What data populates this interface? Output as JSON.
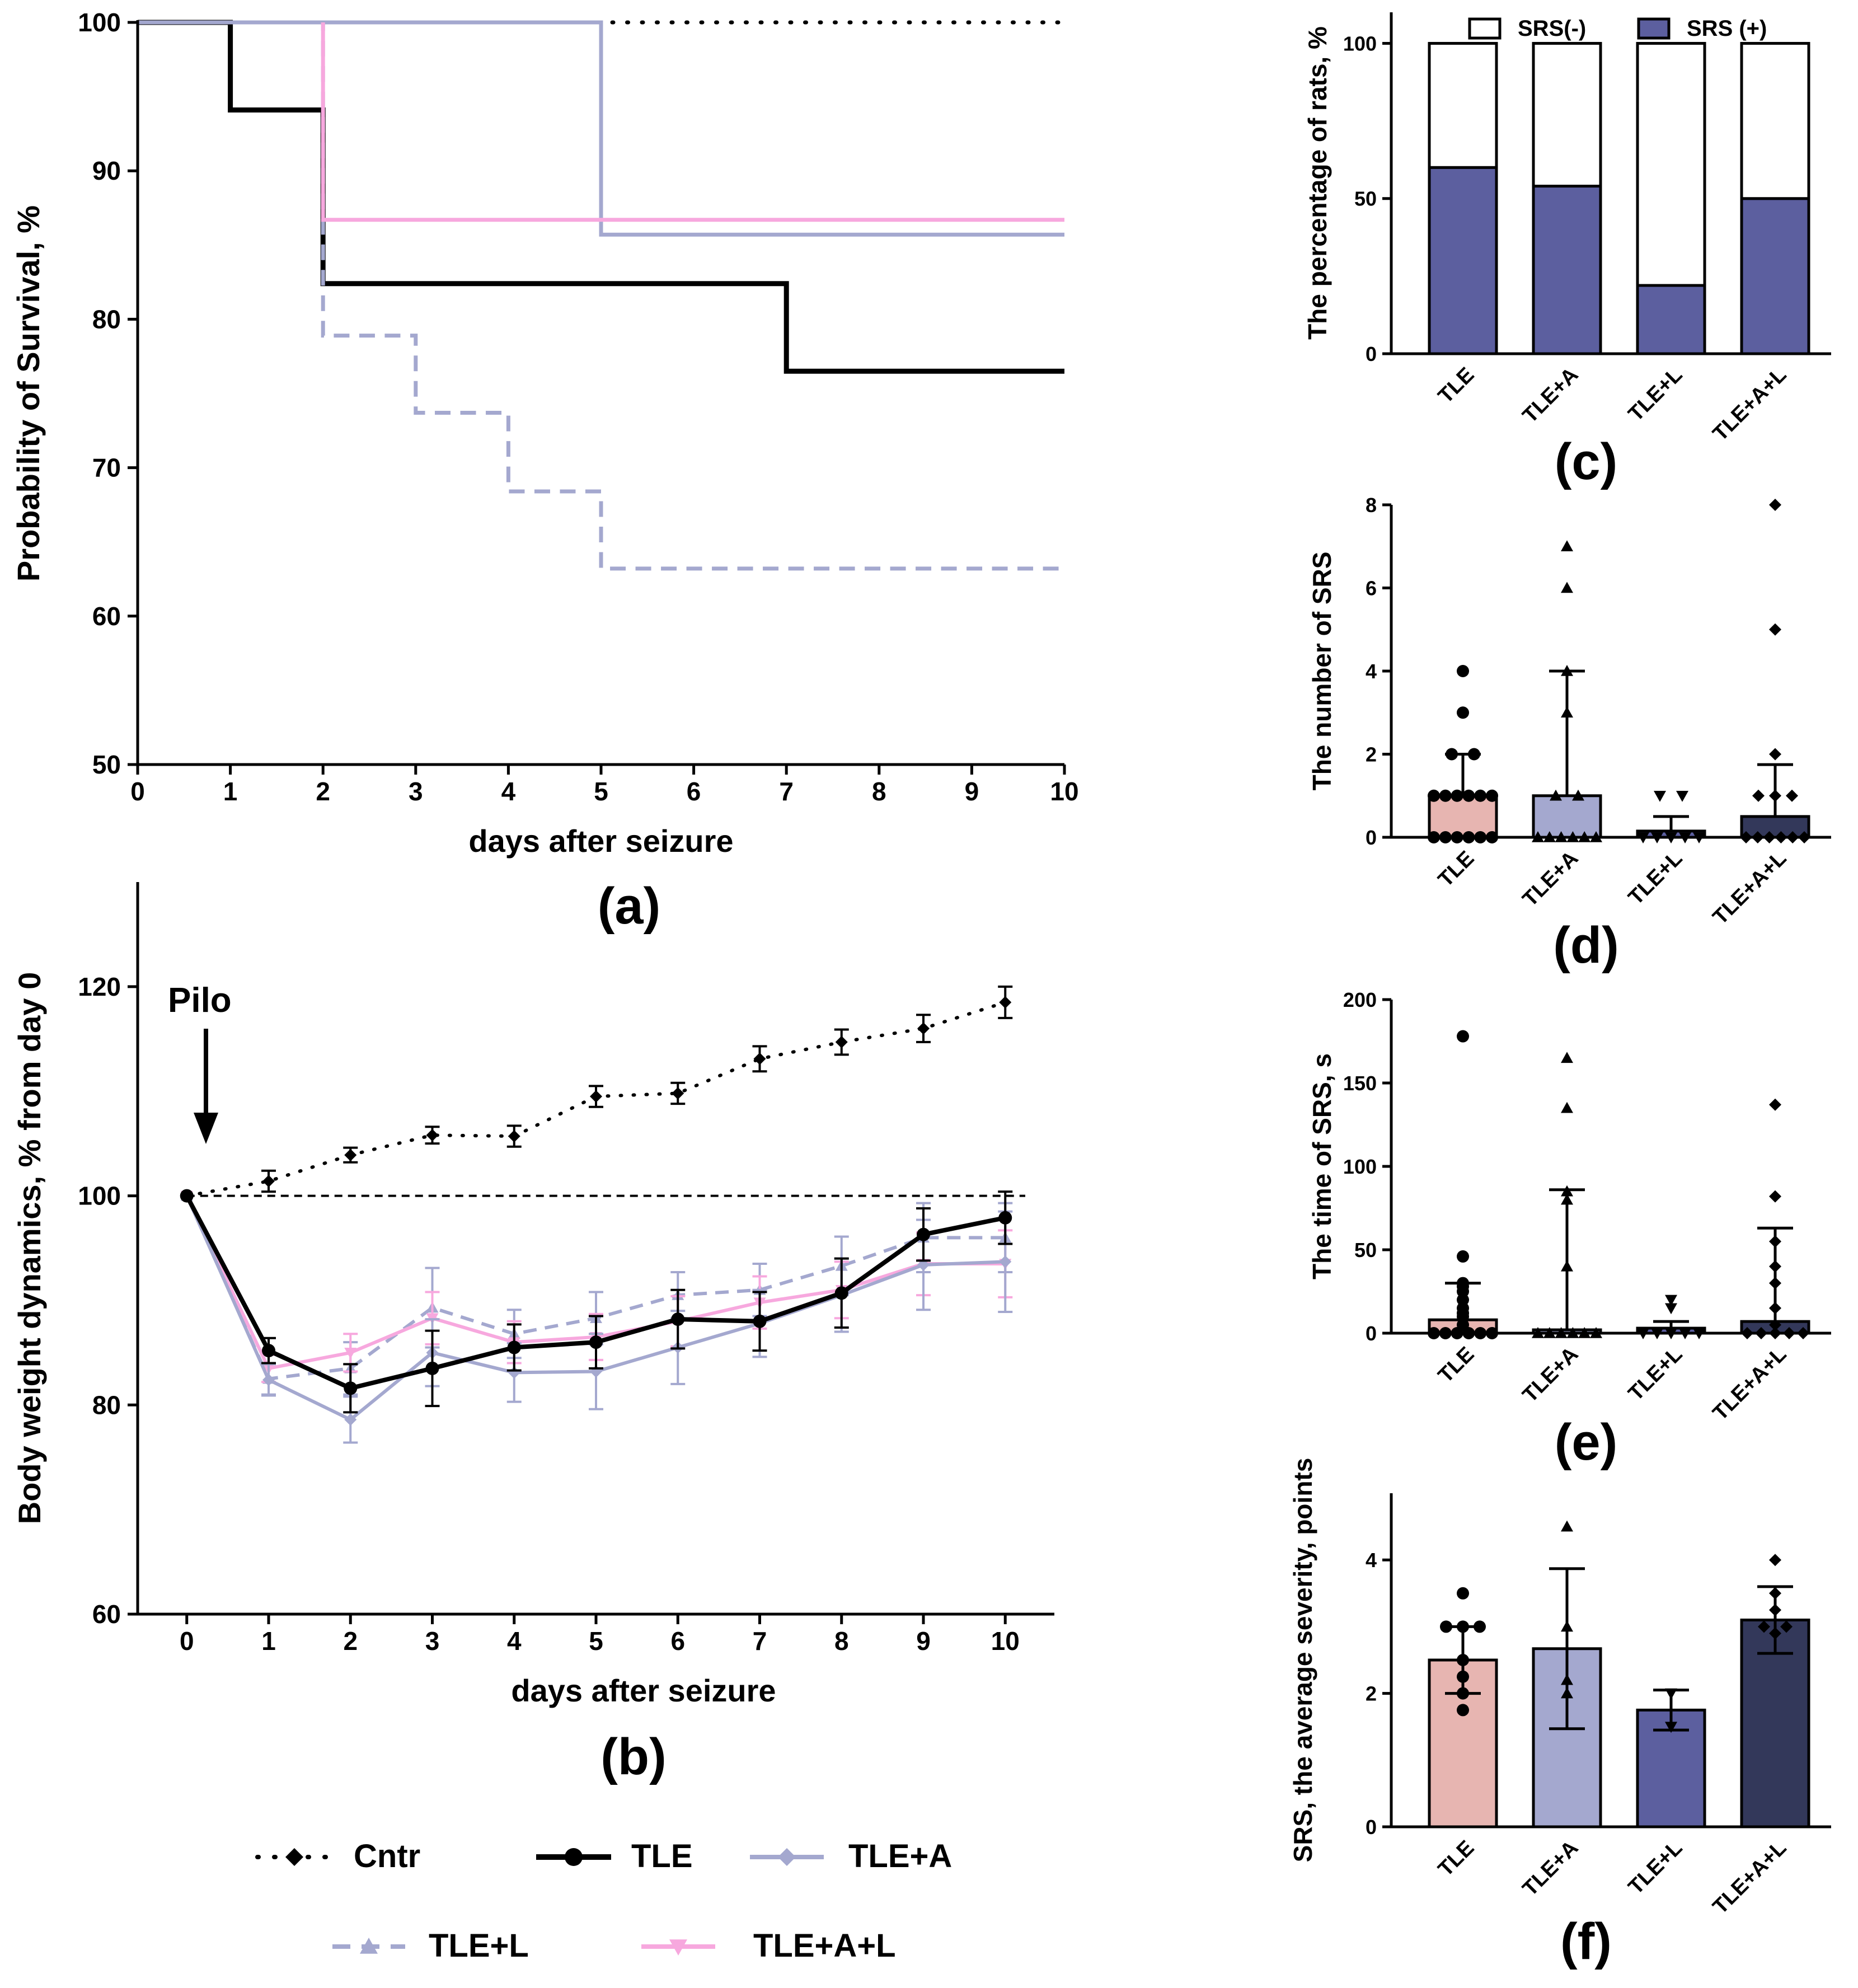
{
  "chart_data": [
    {
      "id": "a",
      "panel_label": "(a)",
      "type": "line",
      "subtype": "kaplan-meier",
      "xlabel": "days after seizure",
      "ylabel": "Probability of Survival, %",
      "xlim": [
        0,
        10
      ],
      "ylim": [
        50,
        100
      ],
      "xticks": [
        0,
        1,
        2,
        3,
        4,
        5,
        6,
        7,
        8,
        9,
        10
      ],
      "yticks": [
        50,
        60,
        70,
        80,
        90,
        100
      ],
      "series": [
        {
          "name": "Cntr",
          "color": "#000000",
          "style": "dotted",
          "steps": [
            [
              0,
              100
            ],
            [
              10,
              100
            ]
          ]
        },
        {
          "name": "TLE",
          "color": "#000000",
          "style": "solid",
          "steps": [
            [
              0,
              100
            ],
            [
              1,
              94.1
            ],
            [
              2,
              82.4
            ],
            [
              7,
              76.5
            ],
            [
              10,
              76.5
            ]
          ]
        },
        {
          "name": "TLE+A",
          "color": "#a4a8cf",
          "style": "solid",
          "steps": [
            [
              0,
              100
            ],
            [
              5,
              85.7
            ],
            [
              10,
              85.7
            ]
          ]
        },
        {
          "name": "TLE+L",
          "color": "#a4a8cf",
          "style": "dashed",
          "steps": [
            [
              0,
              100
            ],
            [
              2,
              78.9
            ],
            [
              3,
              73.7
            ],
            [
              4,
              68.4
            ],
            [
              5,
              63.2
            ],
            [
              10,
              63.2
            ]
          ]
        },
        {
          "name": "TLE+A+L",
          "color": "#f7a8de",
          "style": "solid",
          "steps": [
            [
              2,
              100
            ],
            [
              2,
              86.7
            ],
            [
              10,
              86.7
            ]
          ]
        }
      ]
    },
    {
      "id": "b",
      "panel_label": "(b)",
      "type": "line",
      "xlabel": "days after seizure",
      "ylabel": "Body weight dynamics, % from day 0",
      "xlim": [
        -0.6,
        10.6
      ],
      "ylim": [
        60,
        130
      ],
      "xticks": [
        0,
        1,
        2,
        3,
        4,
        5,
        6,
        7,
        8,
        9,
        10
      ],
      "yticks": [
        60,
        80,
        100,
        120
      ],
      "annotation": "Pilo",
      "reference_line": 100,
      "x": [
        0,
        1,
        2,
        3,
        4,
        5,
        6,
        7,
        8,
        9,
        10
      ],
      "series": [
        {
          "name": "Cntr",
          "color": "#000000",
          "style": "dotted",
          "marker": "diamond",
          "values": [
            100,
            101.4,
            103.9,
            105.8,
            105.7,
            109.5,
            109.8,
            113.1,
            114.7,
            116.0,
            118.5
          ],
          "err": [
            0,
            1.0,
            0.7,
            0.8,
            1.0,
            1.0,
            1.0,
            1.2,
            1.2,
            1.3,
            1.5
          ]
        },
        {
          "name": "TLE+L",
          "color": "#a4a8cf",
          "style": "dashed",
          "marker": "triangle",
          "values": [
            100,
            82.5,
            83.5,
            89.3,
            86.8,
            88.3,
            90.5,
            91.0,
            93.3,
            96.0,
            96.0
          ],
          "err": [
            0,
            1.5,
            2.5,
            3.8,
            2.3,
            2.5,
            2.2,
            2.5,
            2.8,
            3.3,
            3.3
          ]
        },
        {
          "name": "TLE+A+L",
          "color": "#f7a8de",
          "style": "solid",
          "marker": "triangle-down",
          "values": [
            100,
            83.5,
            85.0,
            88.3,
            86.0,
            86.5,
            88.0,
            89.8,
            91.0,
            93.5,
            93.5
          ],
          "err": [
            0,
            1.3,
            1.8,
            2.5,
            2.0,
            2.2,
            2.4,
            2.5,
            2.7,
            3.0,
            3.2
          ]
        },
        {
          "name": "TLE+A",
          "color": "#a4a8cf",
          "style": "solid",
          "marker": "diamond",
          "values": [
            100,
            82.4,
            78.6,
            85.0,
            83.1,
            83.2,
            85.5,
            87.8,
            90.5,
            93.4,
            93.7
          ],
          "err": [
            0,
            1.5,
            2.2,
            3.2,
            2.8,
            3.6,
            3.5,
            3.2,
            3.5,
            4.3,
            4.8
          ]
        },
        {
          "name": "TLE",
          "color": "#000000",
          "style": "solid",
          "marker": "circle",
          "values": [
            100,
            85.2,
            81.6,
            83.5,
            85.5,
            86.0,
            88.2,
            88.0,
            90.7,
            96.3,
            97.9
          ],
          "err": [
            0,
            1.2,
            2.3,
            3.6,
            2.2,
            2.5,
            2.8,
            2.8,
            3.3,
            2.5,
            2.5
          ]
        }
      ]
    },
    {
      "id": "c",
      "panel_label": "(c)",
      "type": "bar",
      "subtype": "stacked-percent",
      "ylabel": "The percentage of rats, %",
      "ylim": [
        0,
        110
      ],
      "yticks": [
        0,
        50,
        100
      ],
      "categories": [
        "TLE",
        "TLE+A",
        "TLE+L",
        "TLE+A+L"
      ],
      "legend": [
        "SRS(-)",
        "SRS (+)"
      ],
      "series": [
        {
          "name": "SRS (+)",
          "color": "#5c5f9f",
          "values": [
            60,
            54,
            22,
            50
          ]
        },
        {
          "name": "SRS(-)",
          "color": "#ffffff",
          "values": [
            40,
            46,
            78,
            50
          ]
        }
      ]
    },
    {
      "id": "d",
      "panel_label": "(d)",
      "type": "bar",
      "subtype": "bar-with-points",
      "ylabel": "The number of SRS",
      "ylim": [
        0,
        8
      ],
      "yticks": [
        0,
        2,
        4,
        6,
        8
      ],
      "categories": [
        "TLE",
        "TLE+A",
        "TLE+L",
        "TLE+A+L"
      ],
      "colors": [
        "#e7b5b1",
        "#a4a8cf",
        "#5c5f9f",
        "#33385a"
      ],
      "markers": [
        "circle",
        "triangle",
        "triangle-down",
        "diamond"
      ],
      "values": [
        1,
        1,
        0.15,
        0.5
      ],
      "err_upper": [
        2,
        4,
        0.5,
        1.75
      ],
      "points": [
        [
          0,
          0,
          0,
          0,
          0,
          0,
          1,
          1,
          1,
          1,
          1,
          1,
          2,
          2,
          3,
          4
        ],
        [
          0,
          0,
          0,
          0,
          0,
          0,
          1,
          1,
          3,
          4,
          6,
          7
        ],
        [
          0,
          0,
          0,
          0,
          0,
          1,
          1
        ],
        [
          0,
          0,
          0,
          0,
          0,
          0,
          1,
          1,
          1,
          2,
          5,
          8
        ]
      ]
    },
    {
      "id": "e",
      "panel_label": "(e)",
      "type": "bar",
      "subtype": "bar-with-points",
      "ylabel": "The time of SRS, s",
      "ylim": [
        0,
        200
      ],
      "yticks": [
        0,
        50,
        100,
        150,
        200
      ],
      "categories": [
        "TLE",
        "TLE+A",
        "TLE+L",
        "TLE+A+L"
      ],
      "colors": [
        "#e7b5b1",
        "#a4a8cf",
        "#5c5f9f",
        "#33385a"
      ],
      "markers": [
        "circle",
        "triangle",
        "triangle-down",
        "diamond"
      ],
      "values": [
        8,
        2,
        3,
        7
      ],
      "err_upper": [
        30,
        86,
        7,
        63
      ],
      "points": [
        [
          0,
          0,
          0,
          0,
          0,
          0,
          5,
          10,
          12,
          15,
          20,
          25,
          28,
          30,
          46,
          178
        ],
        [
          0,
          0,
          0,
          0,
          0,
          0,
          40,
          80,
          85,
          135,
          165
        ],
        [
          0,
          0,
          0,
          0,
          0,
          15,
          20
        ],
        [
          0,
          0,
          0,
          0,
          0,
          5,
          15,
          30,
          40,
          55,
          82,
          137
        ]
      ]
    },
    {
      "id": "f",
      "panel_label": "(f)",
      "type": "bar",
      "subtype": "bar-with-points",
      "ylabel": "SRS, the average severity, points",
      "ylim": [
        0,
        5
      ],
      "yticks": [
        0,
        2,
        4
      ],
      "categories": [
        "TLE",
        "TLE+A",
        "TLE+L",
        "TLE+A+L"
      ],
      "colors": [
        "#e7b5b1",
        "#a4a8cf",
        "#5c5f9f",
        "#33385a"
      ],
      "markers": [
        "circle",
        "triangle",
        "triangle-down",
        "diamond"
      ],
      "values": [
        2.5,
        2.67,
        1.75,
        3.1
      ],
      "err": [
        0.5,
        1.2,
        0.3,
        0.5
      ],
      "points": [
        [
          1.75,
          2.0,
          2.25,
          2.5,
          3.0,
          3.0,
          3.0,
          3.5
        ],
        [
          2.0,
          2.2,
          3.0,
          4.5
        ],
        [
          1.5,
          2.0
        ],
        [
          2.9,
          3.0,
          3.0,
          3.25,
          3.5,
          4.0
        ]
      ]
    }
  ],
  "legend": [
    {
      "name": "Cntr",
      "color": "#000000",
      "style": "dotted",
      "marker": "diamond"
    },
    {
      "name": "TLE",
      "color": "#000000",
      "style": "solid",
      "marker": "circle"
    },
    {
      "name": "TLE+A",
      "color": "#a4a8cf",
      "style": "solid",
      "marker": "diamond"
    },
    {
      "name": "TLE+L",
      "color": "#a4a8cf",
      "style": "dashed",
      "marker": "triangle"
    },
    {
      "name": "TLE+A+L",
      "color": "#f7a8de",
      "style": "solid",
      "marker": "triangle-down"
    }
  ]
}
